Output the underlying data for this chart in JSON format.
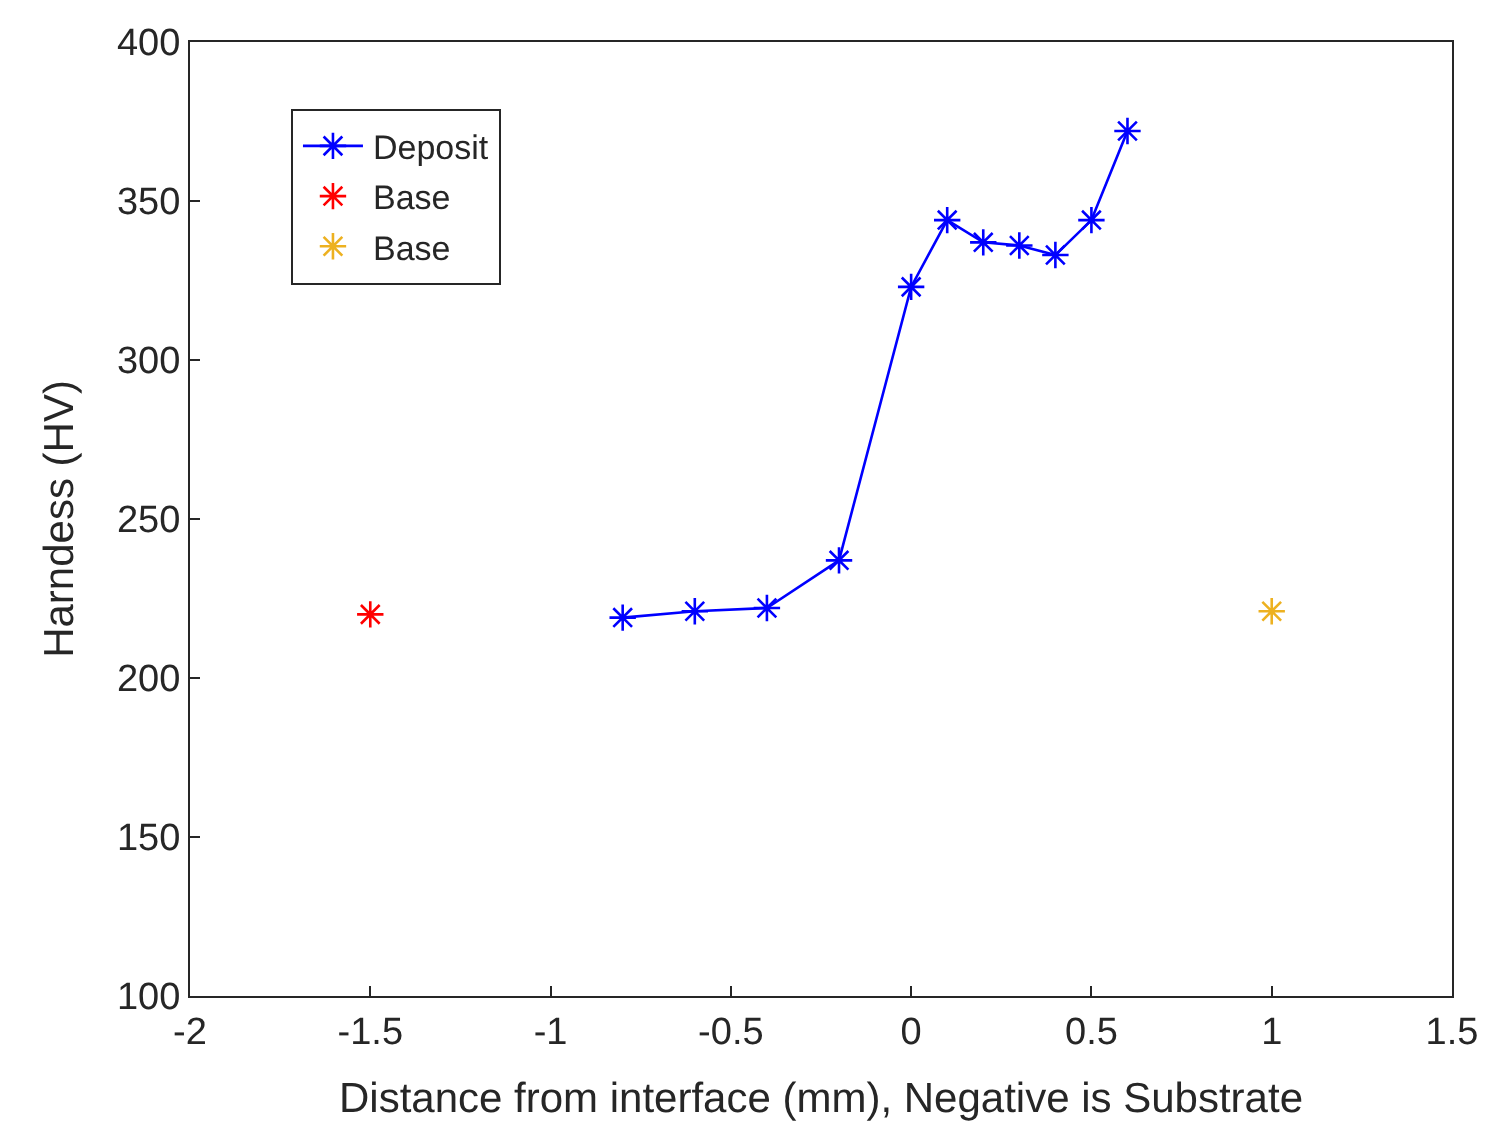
{
  "chart_data": {
    "type": "line",
    "xlabel": "Distance from interface (mm), Negative is Substrate",
    "ylabel": "Harndess (HV)",
    "xlim": [
      -2,
      1.5
    ],
    "xticks": [
      -2,
      -1.5,
      -1,
      -0.5,
      0,
      0.5,
      1,
      1.5
    ],
    "ylim": [
      100,
      400
    ],
    "yticks": [
      100,
      150,
      200,
      250,
      300,
      350,
      400
    ],
    "legend": "top left",
    "marker": "cross",
    "line_style": "solid",
    "series": [
      {
        "name": "Deposit",
        "color": "#0000ff",
        "x": [
          -0.8,
          -0.6,
          -0.4,
          -0.2,
          0,
          0.1,
          0.2,
          0.3,
          0.4,
          0.5,
          0.6
        ],
        "values": [
          219,
          221,
          222,
          237,
          323,
          344,
          337,
          336,
          333,
          344,
          372
        ]
      },
      {
        "name": "Base",
        "color": "#ff0000",
        "type": "scatter",
        "x": [
          -1.5
        ],
        "values": [
          220
        ]
      },
      {
        "name": "Base",
        "color": "#edb120",
        "type": "scatter",
        "x": [
          1
        ],
        "values": [
          221
        ]
      }
    ]
  }
}
